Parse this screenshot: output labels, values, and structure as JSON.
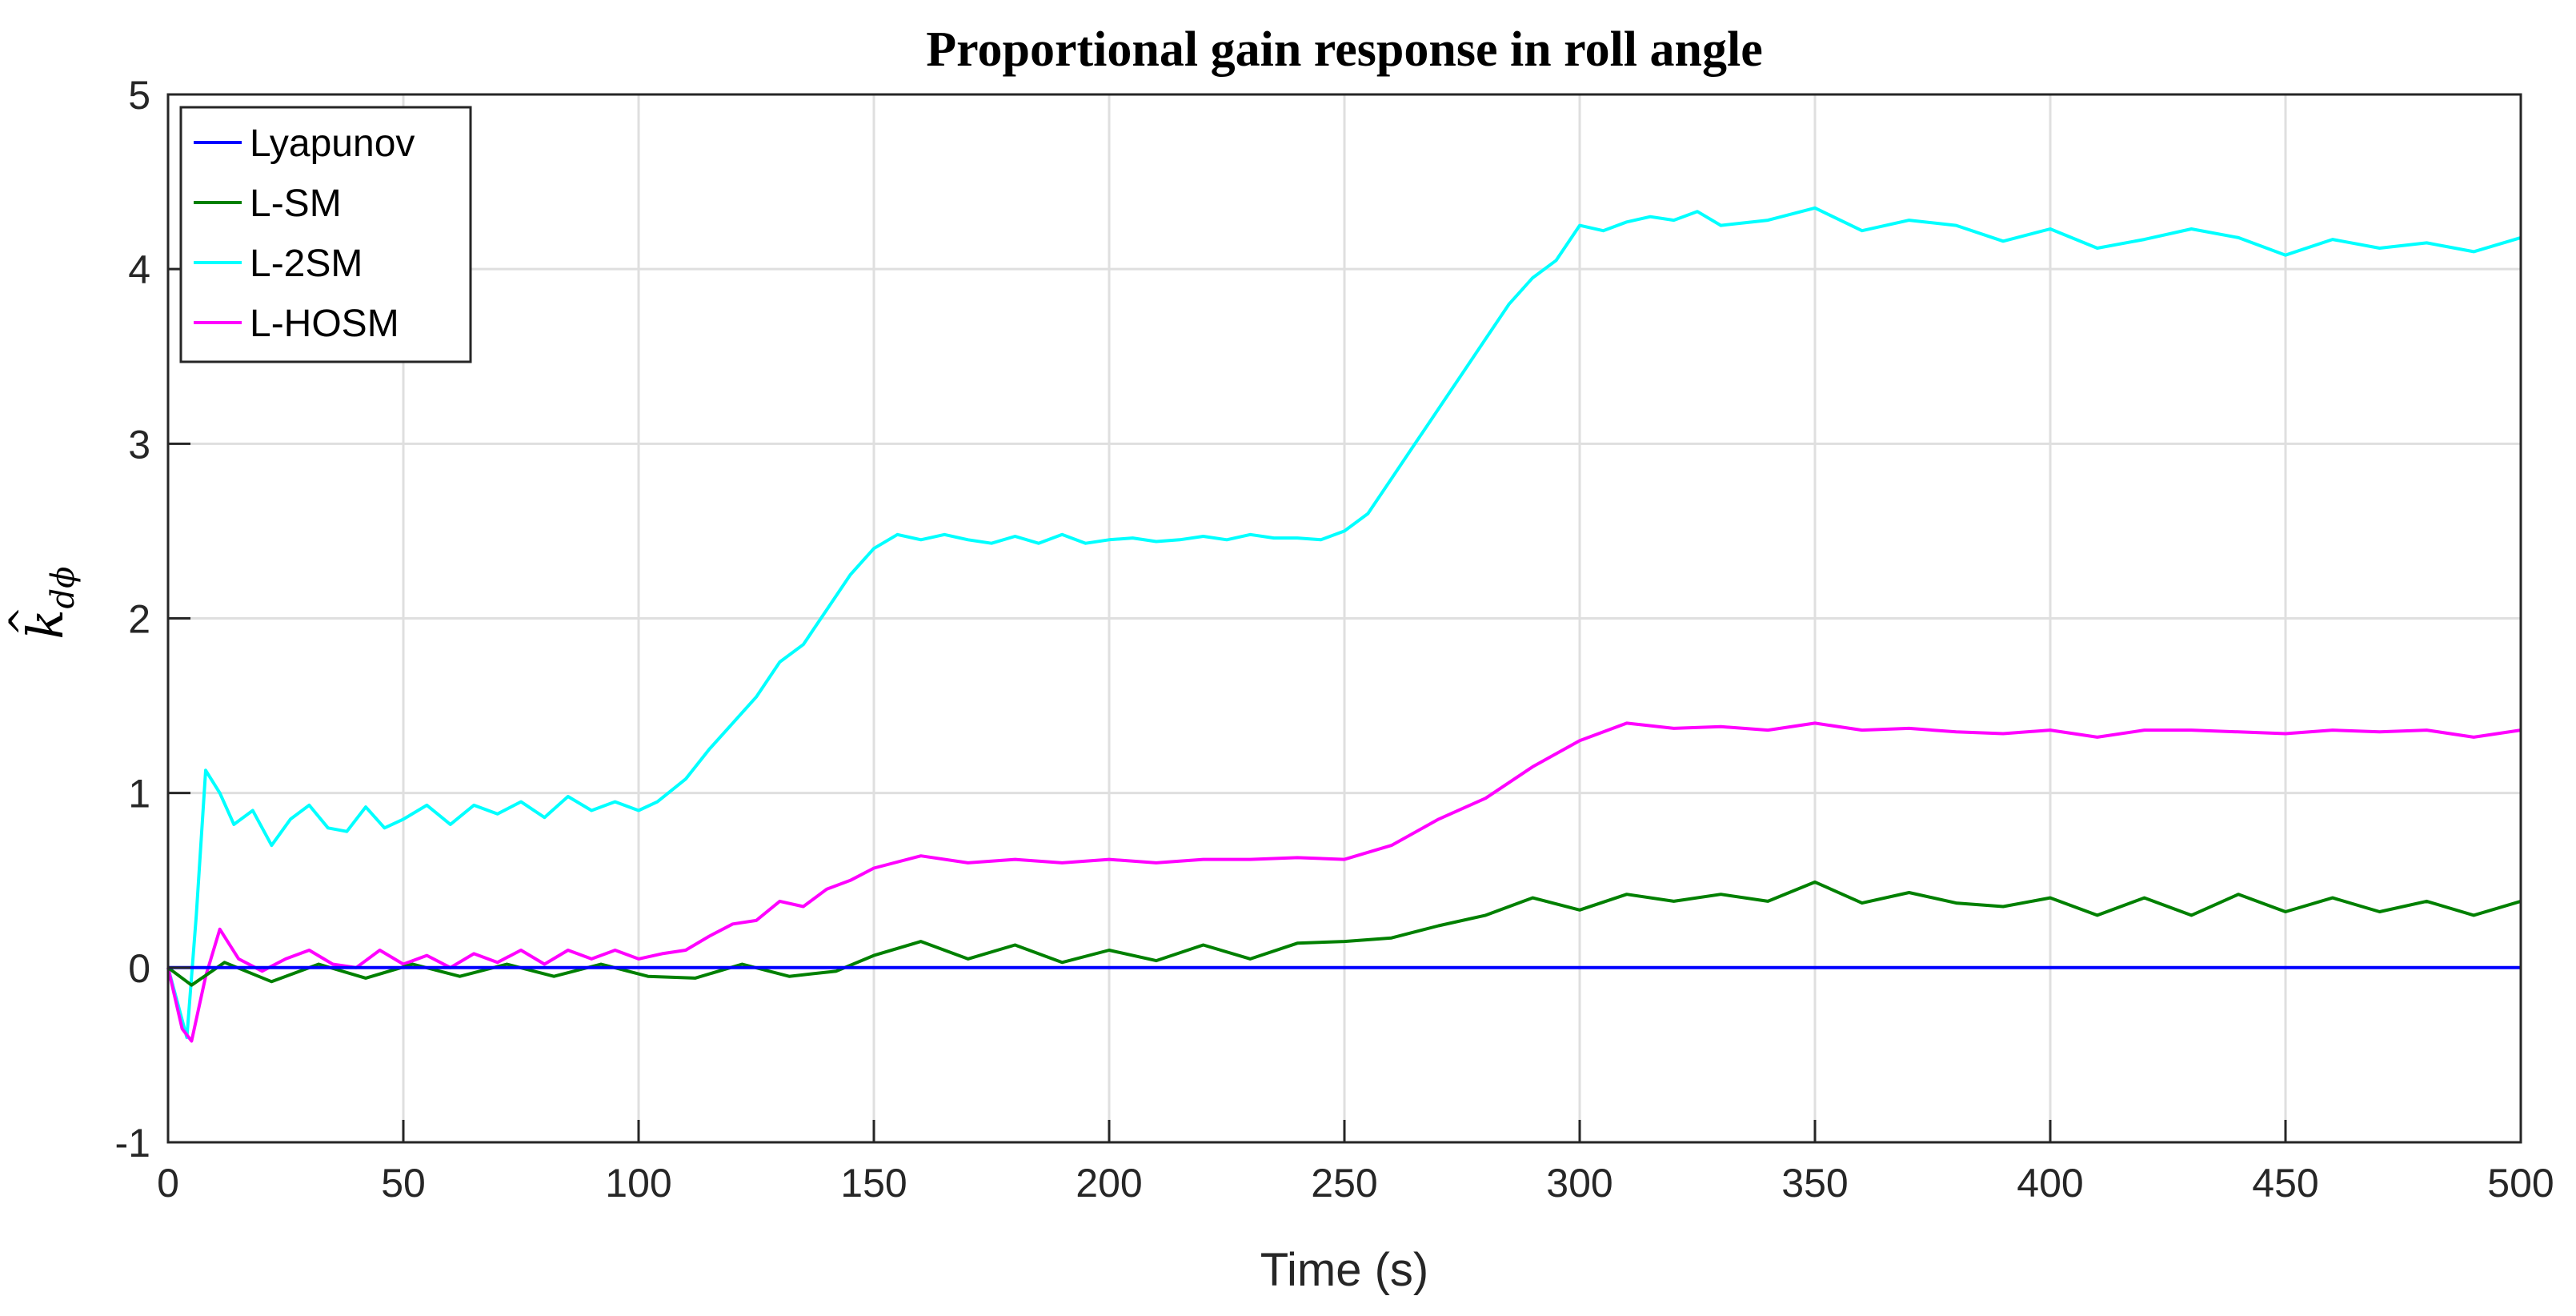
{
  "chart_data": {
    "type": "line",
    "title": "Proportional gain response in roll angle",
    "xlabel": "Time (s)",
    "ylabel": {
      "main": "k",
      "hat": "^",
      "sub": "dϕ"
    },
    "xlim": [
      0,
      500
    ],
    "ylim": [
      -1,
      5
    ],
    "xticks": [
      0,
      50,
      100,
      150,
      200,
      250,
      300,
      350,
      400,
      450,
      500
    ],
    "yticks": [
      -1,
      0,
      1,
      2,
      3,
      4,
      5
    ],
    "grid": true,
    "legend_position": "top-left",
    "series": [
      {
        "name": "Lyapunov",
        "color": "#0000ff",
        "x": [
          0,
          500
        ],
        "y": [
          0.0,
          0.0
        ]
      },
      {
        "name": "L-SM",
        "color": "#008000",
        "x": [
          0,
          5,
          12,
          22,
          32,
          42,
          52,
          62,
          72,
          82,
          92,
          102,
          112,
          122,
          132,
          142,
          150,
          160,
          170,
          180,
          190,
          200,
          210,
          220,
          230,
          240,
          250,
          260,
          270,
          280,
          290,
          300,
          310,
          320,
          330,
          340,
          350,
          360,
          370,
          380,
          390,
          400,
          410,
          420,
          430,
          440,
          450,
          460,
          470,
          480,
          490,
          500
        ],
        "y": [
          0.0,
          -0.1,
          0.03,
          -0.08,
          0.02,
          -0.06,
          0.02,
          -0.05,
          0.02,
          -0.05,
          0.02,
          -0.05,
          -0.06,
          0.02,
          -0.05,
          -0.02,
          0.07,
          0.15,
          0.05,
          0.13,
          0.03,
          0.1,
          0.04,
          0.13,
          0.05,
          0.14,
          0.15,
          0.17,
          0.24,
          0.3,
          0.4,
          0.33,
          0.42,
          0.38,
          0.42,
          0.38,
          0.49,
          0.37,
          0.43,
          0.37,
          0.35,
          0.4,
          0.3,
          0.4,
          0.3,
          0.42,
          0.32,
          0.4,
          0.32,
          0.38,
          0.3,
          0.38
        ]
      },
      {
        "name": "L-2SM",
        "color": "#00ffff",
        "x": [
          0,
          2,
          4,
          6,
          8,
          11,
          14,
          18,
          22,
          26,
          30,
          34,
          38,
          42,
          46,
          50,
          55,
          60,
          65,
          70,
          75,
          80,
          85,
          90,
          95,
          100,
          104,
          110,
          115,
          120,
          125,
          130,
          135,
          140,
          145,
          150,
          155,
          160,
          165,
          170,
          175,
          180,
          185,
          190,
          195,
          200,
          205,
          210,
          215,
          220,
          225,
          230,
          235,
          240,
          245,
          250,
          255,
          260,
          265,
          270,
          275,
          280,
          285,
          290,
          295,
          300,
          305,
          310,
          315,
          320,
          325,
          330,
          340,
          350,
          360,
          370,
          380,
          390,
          400,
          410,
          420,
          430,
          440,
          450,
          460,
          470,
          480,
          490,
          500
        ],
        "y": [
          0.0,
          -0.2,
          -0.4,
          0.3,
          1.13,
          1.0,
          0.82,
          0.9,
          0.7,
          0.85,
          0.93,
          0.8,
          0.78,
          0.92,
          0.8,
          0.85,
          0.93,
          0.82,
          0.93,
          0.88,
          0.95,
          0.86,
          0.98,
          0.9,
          0.95,
          0.9,
          0.95,
          1.08,
          1.25,
          1.4,
          1.55,
          1.75,
          1.85,
          2.05,
          2.25,
          2.4,
          2.48,
          2.45,
          2.48,
          2.45,
          2.43,
          2.47,
          2.43,
          2.48,
          2.43,
          2.45,
          2.46,
          2.44,
          2.45,
          2.47,
          2.45,
          2.48,
          2.46,
          2.46,
          2.45,
          2.5,
          2.6,
          2.8,
          3.0,
          3.2,
          3.4,
          3.6,
          3.8,
          3.95,
          4.05,
          4.25,
          4.22,
          4.27,
          4.3,
          4.28,
          4.33,
          4.25,
          4.28,
          4.35,
          4.22,
          4.28,
          4.25,
          4.16,
          4.23,
          4.12,
          4.17,
          4.23,
          4.18,
          4.08,
          4.17,
          4.12,
          4.15,
          4.1,
          4.18
        ]
      },
      {
        "name": "L-HOSM",
        "color": "#ff00ff",
        "x": [
          0,
          3,
          5,
          8,
          11,
          15,
          20,
          25,
          30,
          35,
          40,
          45,
          50,
          55,
          60,
          65,
          70,
          75,
          80,
          85,
          90,
          95,
          100,
          105,
          110,
          115,
          120,
          125,
          130,
          135,
          140,
          145,
          150,
          160,
          170,
          180,
          190,
          200,
          210,
          220,
          230,
          240,
          250,
          260,
          270,
          280,
          290,
          300,
          310,
          320,
          330,
          340,
          350,
          360,
          370,
          380,
          390,
          400,
          410,
          420,
          430,
          440,
          450,
          460,
          470,
          480,
          490,
          500
        ],
        "y": [
          0.0,
          -0.35,
          -0.42,
          -0.05,
          0.22,
          0.05,
          -0.02,
          0.05,
          0.1,
          0.02,
          0.0,
          0.1,
          0.02,
          0.07,
          0.0,
          0.08,
          0.03,
          0.1,
          0.02,
          0.1,
          0.05,
          0.1,
          0.05,
          0.08,
          0.1,
          0.18,
          0.25,
          0.27,
          0.38,
          0.35,
          0.45,
          0.5,
          0.57,
          0.64,
          0.6,
          0.62,
          0.6,
          0.62,
          0.6,
          0.62,
          0.62,
          0.63,
          0.62,
          0.7,
          0.85,
          0.97,
          1.15,
          1.3,
          1.4,
          1.37,
          1.38,
          1.36,
          1.4,
          1.36,
          1.37,
          1.35,
          1.34,
          1.36,
          1.32,
          1.36,
          1.36,
          1.35,
          1.34,
          1.36,
          1.35,
          1.36,
          1.32,
          1.36
        ]
      }
    ]
  }
}
